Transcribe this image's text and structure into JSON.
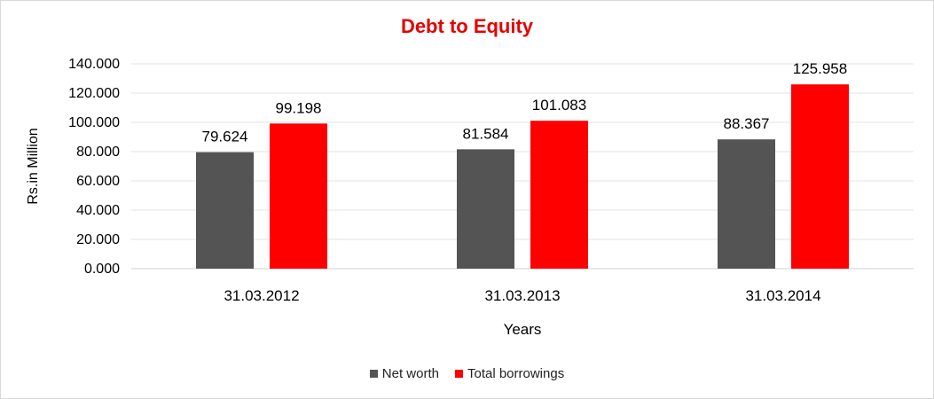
{
  "chart_data": {
    "type": "bar",
    "title": "Debt to Equity",
    "xlabel": "Years",
    "ylabel": "Rs.in Million",
    "categories": [
      "31.03.2012",
      "31.03.2013",
      "31.03.2014"
    ],
    "series": [
      {
        "name": "Net worth",
        "values": [
          79.624,
          81.584,
          88.367
        ],
        "labels": [
          "79.624",
          "81.584",
          "88.367"
        ],
        "color": "#545454"
      },
      {
        "name": "Total borrowings",
        "values": [
          99.198,
          101.083,
          125.958
        ],
        "labels": [
          "99.198",
          "101.083",
          "125.958"
        ],
        "color": "#ff0000"
      }
    ],
    "ylim": [
      0,
      140
    ],
    "yticks": [
      0,
      20,
      40,
      60,
      80,
      100,
      120,
      140
    ],
    "ytick_labels": [
      "0.000",
      "20.000",
      "40.000",
      "60.000",
      "80.000",
      "100.000",
      "120.000",
      "140.000"
    ],
    "grid": true,
    "legend_position": "bottom",
    "title_color": "#e60000"
  }
}
